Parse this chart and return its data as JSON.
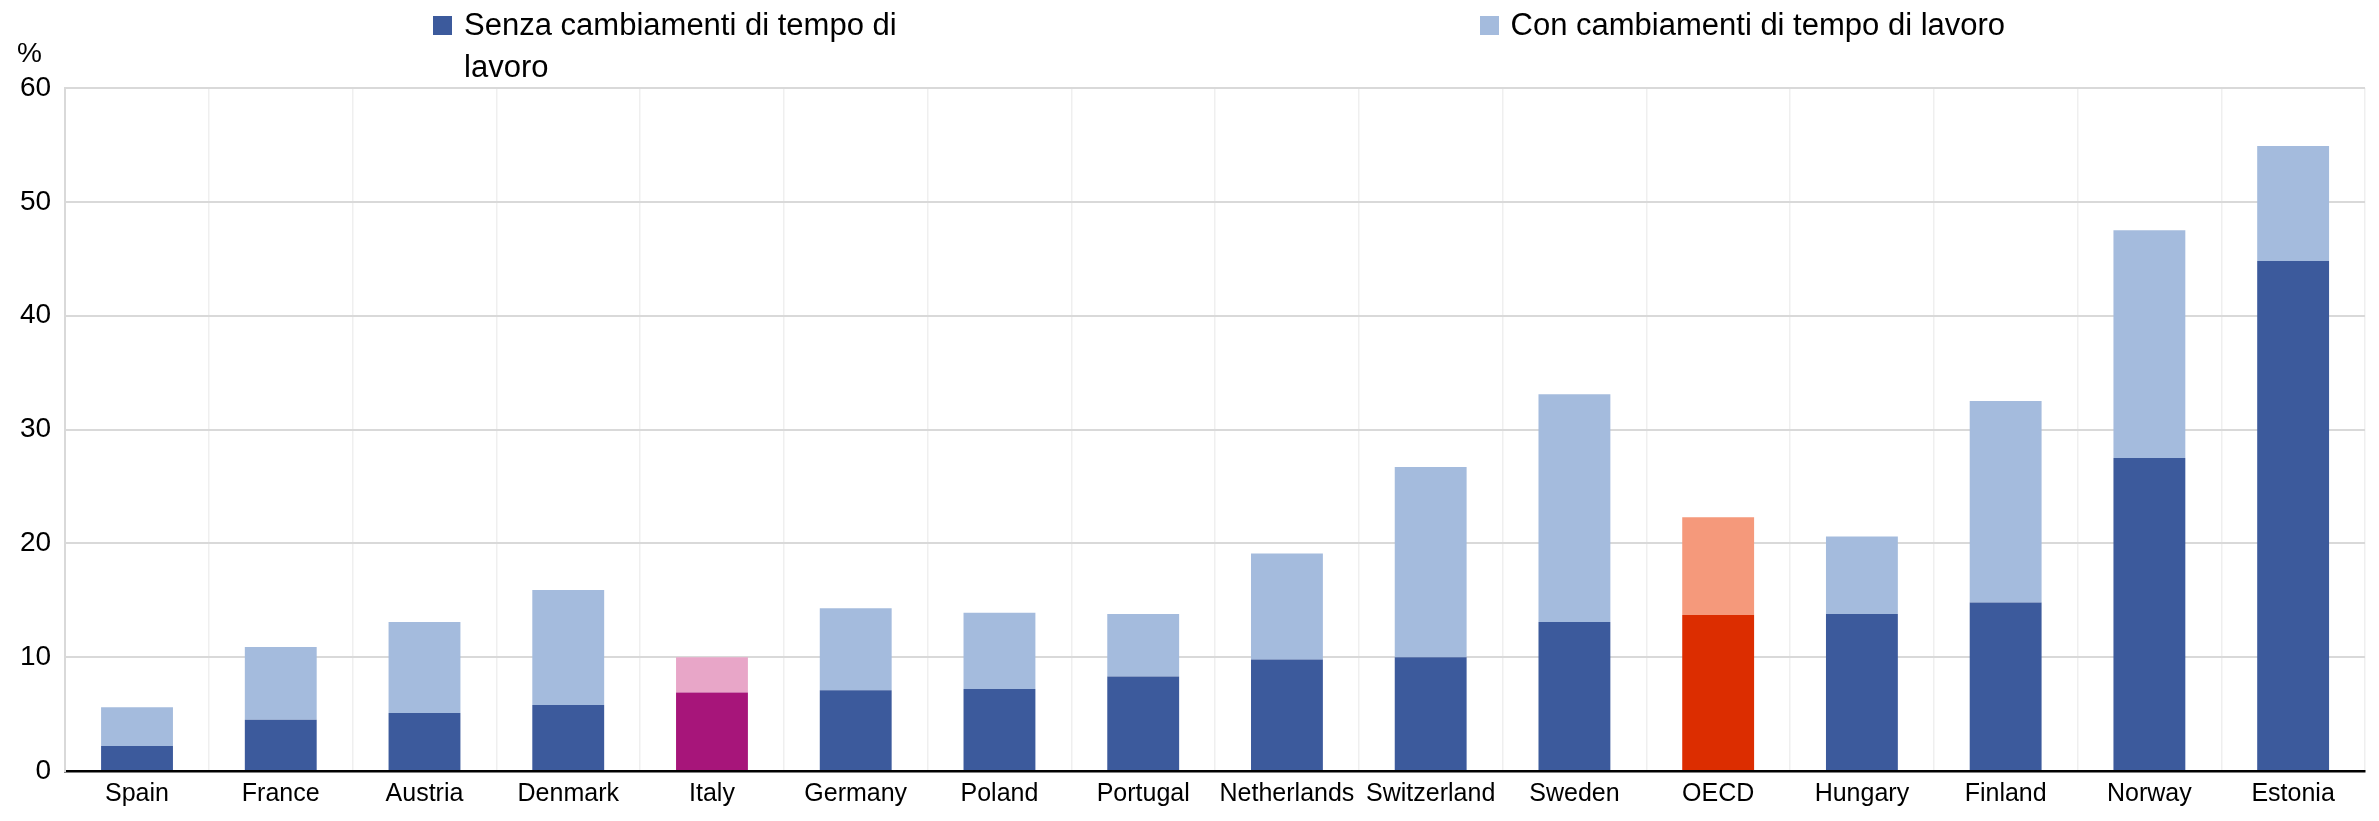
{
  "chart_data": {
    "type": "bar",
    "ylabel": "%",
    "categories": [
      "Spain",
      "France",
      "Austria",
      "Denmark",
      "Italy",
      "Germany",
      "Poland",
      "Portugal",
      "Netherlands",
      "Switzerland",
      "Sweden",
      "OECD",
      "Hungary",
      "Finland",
      "Norway",
      "Estonia"
    ],
    "series": [
      {
        "name": "Senza cambiamenti di tempo di lavoro",
        "color": "#3c5a9c",
        "colors": [
          "#3c5a9c",
          "#3c5a9c",
          "#3c5a9c",
          "#3c5a9c",
          "#a7157a",
          "#3c5a9c",
          "#3c5a9c",
          "#3c5a9c",
          "#3c5a9c",
          "#3c5a9c",
          "#3c5a9c",
          "#dc2d00",
          "#3c5a9c",
          "#3c5a9c",
          "#3c5a9c",
          "#3c5a9c"
        ],
        "values": [
          2.2,
          4.5,
          5.1,
          5.8,
          6.9,
          7.1,
          7.2,
          8.3,
          9.8,
          10.0,
          13.1,
          13.7,
          13.8,
          14.8,
          27.5,
          44.8
        ]
      },
      {
        "name": "Con cambiamenti di tempo di lavoro",
        "color": "#a4bbdd",
        "colors": [
          "#a4bbdd",
          "#a4bbdd",
          "#a4bbdd",
          "#a4bbdd",
          "#e8a6c8",
          "#a4bbdd",
          "#a4bbdd",
          "#a4bbdd",
          "#a4bbdd",
          "#a4bbdd",
          "#a4bbdd",
          "#f5997b",
          "#a4bbdd",
          "#a4bbdd",
          "#a4bbdd",
          "#a4bbdd"
        ],
        "values": [
          3.4,
          6.4,
          8.0,
          10.1,
          3.1,
          7.2,
          6.7,
          5.5,
          9.3,
          16.7,
          20.0,
          8.6,
          6.8,
          17.7,
          20.0,
          10.1
        ]
      }
    ],
    "stacked": true,
    "ylim": [
      0,
      60
    ],
    "yticks": [
      0,
      10,
      20,
      30,
      40,
      50,
      60
    ],
    "grid": true,
    "legend": "top"
  }
}
